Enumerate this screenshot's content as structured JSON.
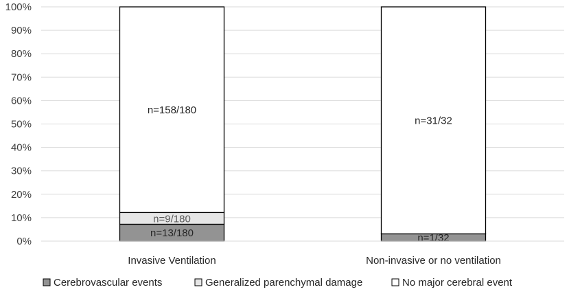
{
  "chart_data": {
    "type": "bar",
    "stacked": true,
    "percent": true,
    "title": "",
    "xlabel": "",
    "ylabel": "",
    "ylim": [
      0,
      100
    ],
    "y_ticks": [
      "0%",
      "10%",
      "20%",
      "30%",
      "40%",
      "50%",
      "60%",
      "70%",
      "80%",
      "90%",
      "100%"
    ],
    "grid": true,
    "legend_position": "bottom",
    "categories": [
      "Invasive Ventilation",
      "Non-invasive or no ventilation"
    ],
    "series": [
      {
        "name": "Cerebrovascular events",
        "color": "#939393",
        "label_color": "#262626",
        "values": [
          7.2,
          3.1
        ],
        "labels": [
          "n=13/180",
          "n=1/32"
        ]
      },
      {
        "name": "Generalized parenchymal damage",
        "color": "#e6e6e6",
        "label_color": "#595959",
        "values": [
          5.0,
          0
        ],
        "labels": [
          "n=9/180",
          ""
        ]
      },
      {
        "name": "No major cerebral event",
        "color": "#ffffff",
        "label_color": "#262626",
        "values": [
          87.8,
          96.9
        ],
        "labels": [
          "n=158/180",
          "n=31/32"
        ]
      }
    ]
  }
}
